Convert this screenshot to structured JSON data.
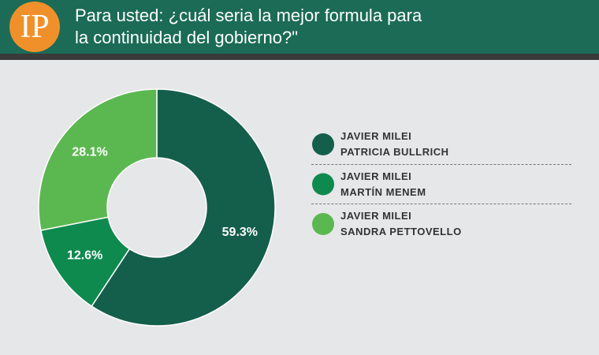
{
  "logo": "IP",
  "chart_data": {
    "type": "donut",
    "title": "Para usted: ¿cuál seria la mejor formula para\nla continuidad del gobierno?\"",
    "series": [
      {
        "name": "JAVIER MILEI\nPATRICIA BULLRICH",
        "color": "#145e4c",
        "values": [
          59.3
        ],
        "value_labels": [
          "59.3%"
        ]
      },
      {
        "name": "JAVIER MILEI\nMARTÍN MENEM",
        "color": "#0f8a4f",
        "values": [
          12.6
        ],
        "value_labels": [
          "12.6%"
        ]
      },
      {
        "name": "JAVIER MILEI\nSANDRA PETTOVELLO",
        "color": "#5bb850",
        "values": [
          28.1
        ],
        "value_labels": [
          "28.1%"
        ]
      }
    ]
  }
}
